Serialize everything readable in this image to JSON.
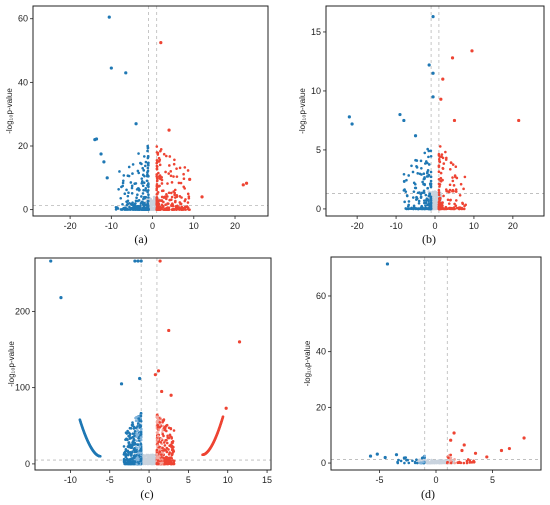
{
  "colors": {
    "up": "#ee4433",
    "down": "#1f78b4",
    "up_light": "#f4a8a0",
    "down_light": "#7fb3db",
    "ns": "#c9d3de",
    "frame": "#222222",
    "dashed": "#b8b8b8"
  },
  "chart_data": [
    {
      "type": "scatter",
      "panel_label": "(a)",
      "ylabel": "-log₁₀p-value",
      "xlim": [
        -29,
        28
      ],
      "ylim": [
        -2,
        64
      ],
      "xticks": [
        -20,
        -10,
        0,
        10,
        20
      ],
      "yticks": [
        0,
        20,
        40,
        60
      ],
      "vlines": [
        -1,
        1
      ],
      "hline": 1.3,
      "cloud": {
        "xmax": 9,
        "ymax": 22,
        "ymax_ns": 4,
        "n_ns": 160,
        "n_sig": 440,
        "threshold": 1
      },
      "points": [
        {
          "x": -10.5,
          "y": 60.5,
          "g": "down"
        },
        {
          "x": -10,
          "y": 44.5,
          "g": "down"
        },
        {
          "x": -6.5,
          "y": 43,
          "g": "down"
        },
        {
          "x": 2,
          "y": 52.5,
          "g": "up"
        },
        {
          "x": -14,
          "y": 22,
          "g": "down"
        },
        {
          "x": -13.6,
          "y": 22.2,
          "g": "down"
        },
        {
          "x": -12.5,
          "y": 17.5,
          "g": "down"
        },
        {
          "x": -11.8,
          "y": 15,
          "g": "down"
        },
        {
          "x": -4,
          "y": 27,
          "g": "down"
        },
        {
          "x": 4,
          "y": 25,
          "g": "up"
        },
        {
          "x": 9,
          "y": 9.5,
          "g": "up"
        },
        {
          "x": 22,
          "y": 7.8,
          "g": "up"
        },
        {
          "x": 22.8,
          "y": 8.3,
          "g": "up"
        },
        {
          "x": 12,
          "y": 4,
          "g": "up"
        },
        {
          "x": -11,
          "y": 10,
          "g": "down"
        }
      ]
    },
    {
      "type": "scatter",
      "panel_label": "(b)",
      "ylabel": "-log₁₀p-value",
      "xlim": [
        -28,
        28
      ],
      "ylim": [
        -0.6,
        17.2
      ],
      "xticks": [
        -20,
        -10,
        0,
        10,
        20
      ],
      "yticks": [
        0,
        5,
        10,
        15
      ],
      "vlines": [
        -1,
        1
      ],
      "hline": 1.3,
      "cloud": {
        "xmax": 8,
        "ymax": 6,
        "ymax_ns": 1.5,
        "n_ns": 260,
        "n_sig": 320,
        "threshold": 1
      },
      "points": [
        {
          "x": -0.5,
          "y": 16.3,
          "g": "down"
        },
        {
          "x": 9.5,
          "y": 13.4,
          "g": "up"
        },
        {
          "x": 4.5,
          "y": 12.8,
          "g": "up"
        },
        {
          "x": -1.5,
          "y": 12.2,
          "g": "down"
        },
        {
          "x": -0.5,
          "y": 11.5,
          "g": "down"
        },
        {
          "x": 2,
          "y": 11,
          "g": "up"
        },
        {
          "x": -22,
          "y": 7.8,
          "g": "down"
        },
        {
          "x": -21.3,
          "y": 7.2,
          "g": "down"
        },
        {
          "x": 21.5,
          "y": 7.5,
          "g": "up"
        },
        {
          "x": -9,
          "y": 8,
          "g": "down"
        },
        {
          "x": -8,
          "y": 7.5,
          "g": "down"
        },
        {
          "x": -5,
          "y": 6.2,
          "g": "down"
        },
        {
          "x": 5,
          "y": 7.5,
          "g": "up"
        },
        {
          "x": -0.5,
          "y": 9.5,
          "g": "down"
        },
        {
          "x": 1.5,
          "y": 9.3,
          "g": "up"
        }
      ]
    },
    {
      "type": "scatter",
      "panel_label": "(c)",
      "ylabel": "-log₁₀p-value",
      "xlim": [
        -14.5,
        15.5
      ],
      "ylim": [
        -8,
        270
      ],
      "xticks": [
        -10,
        -5,
        0,
        5,
        10,
        15
      ],
      "yticks": [
        0,
        100,
        200
      ],
      "vlines": [
        -1,
        1
      ],
      "hline": 5,
      "cloud": {
        "xmax": 3.2,
        "ymax": 80,
        "ymax_ns": 12,
        "n_ns": 300,
        "n_sig": 900,
        "threshold": 1,
        "light": true
      },
      "arcs": [
        {
          "x0": -8.8,
          "x1": -6.2,
          "y0": 58,
          "y1": 10,
          "g": "down",
          "n": 90
        },
        {
          "x0": 6.8,
          "x1": 9.4,
          "y0": 12,
          "y1": 62,
          "g": "up",
          "n": 90
        }
      ],
      "points": [
        {
          "x": -12.5,
          "y": 266,
          "g": "down"
        },
        {
          "x": -1.8,
          "y": 266,
          "g": "down"
        },
        {
          "x": -1.4,
          "y": 266,
          "g": "down"
        },
        {
          "x": -1,
          "y": 266,
          "g": "down"
        },
        {
          "x": 1.4,
          "y": 266,
          "g": "up"
        },
        {
          "x": -11.2,
          "y": 218,
          "g": "down"
        },
        {
          "x": 2.5,
          "y": 175,
          "g": "up"
        },
        {
          "x": 11.5,
          "y": 160,
          "g": "up"
        },
        {
          "x": 1.2,
          "y": 122,
          "g": "up"
        },
        {
          "x": 0.8,
          "y": 117,
          "g": "up"
        },
        {
          "x": -3.5,
          "y": 105,
          "g": "down"
        },
        {
          "x": -1.2,
          "y": 112,
          "g": "down"
        },
        {
          "x": 9.8,
          "y": 73,
          "g": "up"
        },
        {
          "x": 1.6,
          "y": 95,
          "g": "up"
        },
        {
          "x": 2.8,
          "y": 90,
          "g": "up"
        }
      ]
    },
    {
      "type": "scatter",
      "panel_label": "(d)",
      "ylabel": "-log₁₀p-value",
      "xlim": [
        -9.3,
        9.3
      ],
      "ylim": [
        -2.5,
        74
      ],
      "xticks": [
        -5,
        0,
        5
      ],
      "yticks": [
        0,
        20,
        40,
        60
      ],
      "vlines": [
        -1,
        1
      ],
      "hline": 1.3,
      "cloud": {
        "xmax": 3.5,
        "ymax": 3.5,
        "ymax_ns": 1.2,
        "n_ns": 160,
        "n_sig": 60,
        "threshold": 1,
        "light": true
      },
      "points": [
        {
          "x": -4.3,
          "y": 71.5,
          "g": "down"
        },
        {
          "x": 7.8,
          "y": 9,
          "g": "up"
        },
        {
          "x": 6.5,
          "y": 5.2,
          "g": "up"
        },
        {
          "x": 5.8,
          "y": 4.5,
          "g": "up"
        },
        {
          "x": 1.6,
          "y": 10.8,
          "g": "up"
        },
        {
          "x": 1.3,
          "y": 8.2,
          "g": "up"
        },
        {
          "x": 2.5,
          "y": 6.5,
          "g": "up"
        },
        {
          "x": 2.3,
          "y": 4.5,
          "g": "up"
        },
        {
          "x": 3.5,
          "y": 3.5,
          "g": "up"
        },
        {
          "x": -5.8,
          "y": 2.5,
          "g": "down"
        },
        {
          "x": -5.2,
          "y": 3.2,
          "g": "down"
        },
        {
          "x": -4.5,
          "y": 2,
          "g": "down"
        },
        {
          "x": -3.5,
          "y": 3,
          "g": "down"
        },
        {
          "x": -2.8,
          "y": 1.8,
          "g": "down"
        },
        {
          "x": 4.5,
          "y": 2.2,
          "g": "up"
        }
      ]
    }
  ]
}
